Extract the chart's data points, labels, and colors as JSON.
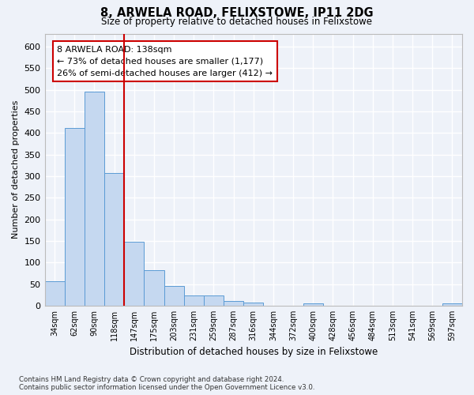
{
  "title": "8, ARWELA ROAD, FELIXSTOWE, IP11 2DG",
  "subtitle": "Size of property relative to detached houses in Felixstowe",
  "xlabel": "Distribution of detached houses by size in Felixstowe",
  "ylabel": "Number of detached properties",
  "bar_labels": [
    "34sqm",
    "62sqm",
    "90sqm",
    "118sqm",
    "147sqm",
    "175sqm",
    "203sqm",
    "231sqm",
    "259sqm",
    "287sqm",
    "316sqm",
    "344sqm",
    "372sqm",
    "400sqm",
    "428sqm",
    "456sqm",
    "484sqm",
    "513sqm",
    "541sqm",
    "569sqm",
    "597sqm"
  ],
  "bar_values": [
    57,
    412,
    495,
    307,
    148,
    82,
    45,
    24,
    24,
    10,
    7,
    0,
    0,
    5,
    0,
    0,
    0,
    0,
    0,
    0,
    5
  ],
  "bar_color": "#c5d8f0",
  "bar_edge_color": "#5b9bd5",
  "vline_x": 3.5,
  "vline_color": "#cc0000",
  "annotation_text": "8 ARWELA ROAD: 138sqm\n← 73% of detached houses are smaller (1,177)\n26% of semi-detached houses are larger (412) →",
  "annotation_box_color": "#ffffff",
  "annotation_box_edge": "#cc0000",
  "ylim": [
    0,
    630
  ],
  "yticks": [
    0,
    50,
    100,
    150,
    200,
    250,
    300,
    350,
    400,
    450,
    500,
    550,
    600
  ],
  "footnote": "Contains HM Land Registry data © Crown copyright and database right 2024.\nContains public sector information licensed under the Open Government Licence v3.0.",
  "bg_color": "#eef2f9",
  "plot_bg_color": "#eef2f9",
  "grid_color": "#ffffff"
}
